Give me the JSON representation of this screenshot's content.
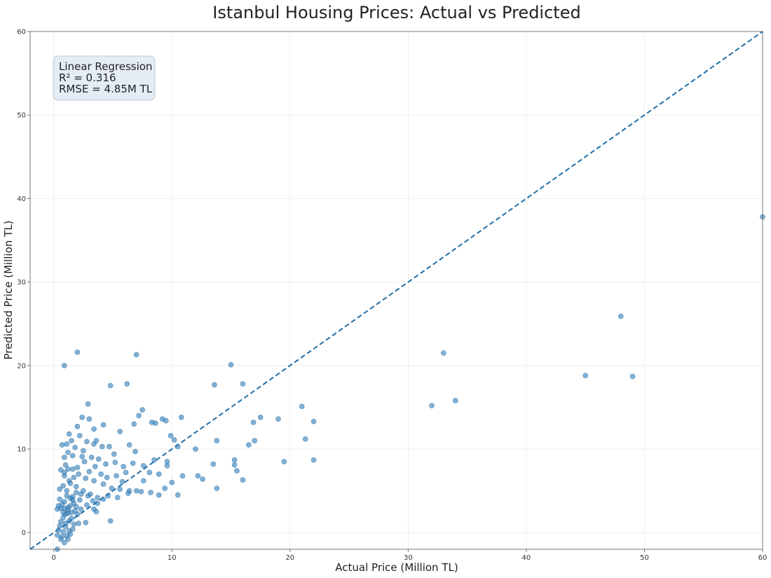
{
  "chart_data": {
    "type": "scatter",
    "title": "Istanbul Housing Prices: Actual vs Predicted",
    "xlabel": "Actual Price (Million TL)",
    "ylabel": "Predicted Price (Million TL)",
    "xlim": [
      -2,
      60
    ],
    "ylim": [
      -2,
      60
    ],
    "xticks": [
      0,
      10,
      20,
      30,
      40,
      50,
      60
    ],
    "yticks": [
      0,
      10,
      20,
      30,
      40,
      50,
      60
    ],
    "grid": true,
    "reference_line": {
      "from": [
        -2,
        -2
      ],
      "to": [
        60,
        60
      ],
      "style": "dashed",
      "color": "#1f6fa8"
    },
    "point_color": "#2b7bb9",
    "annotation": [
      "Linear Regression",
      "R² = 0.316",
      "RMSE = 4.85M TL"
    ],
    "series": [
      {
        "points": [
          [
            0.9,
            20.0
          ],
          [
            2.0,
            21.6
          ],
          [
            4.8,
            17.6
          ],
          [
            6.2,
            17.8
          ],
          [
            7.0,
            21.3
          ],
          [
            15.0,
            20.1
          ],
          [
            13.6,
            17.7
          ],
          [
            16.0,
            17.8
          ],
          [
            2.9,
            15.4
          ],
          [
            4.2,
            12.9
          ],
          [
            7.5,
            14.7
          ],
          [
            9.2,
            13.6
          ],
          [
            10.8,
            13.8
          ],
          [
            17.5,
            13.8
          ],
          [
            19.0,
            13.6
          ],
          [
            21.0,
            15.1
          ],
          [
            22.0,
            13.3
          ],
          [
            16.9,
            13.2
          ],
          [
            17.0,
            11.0
          ],
          [
            16.5,
            10.5
          ],
          [
            13.8,
            11.0
          ],
          [
            12.0,
            10.0
          ],
          [
            10.5,
            10.3
          ],
          [
            9.9,
            11.6
          ],
          [
            10.2,
            11.1
          ],
          [
            8.3,
            13.2
          ],
          [
            8.6,
            13.1
          ],
          [
            9.5,
            13.4
          ],
          [
            7.2,
            14.0
          ],
          [
            6.8,
            13.0
          ],
          [
            5.6,
            12.1
          ],
          [
            6.4,
            10.5
          ],
          [
            6.9,
            9.7
          ],
          [
            5.1,
            9.4
          ],
          [
            4.7,
            10.3
          ],
          [
            4.1,
            10.3
          ],
          [
            3.4,
            12.4
          ],
          [
            3.0,
            13.6
          ],
          [
            2.4,
            13.8
          ],
          [
            2.0,
            12.7
          ],
          [
            1.3,
            11.8
          ],
          [
            1.5,
            11.0
          ],
          [
            1.1,
            10.6
          ],
          [
            0.7,
            10.5
          ],
          [
            1.8,
            10.2
          ],
          [
            2.5,
            9.8
          ],
          [
            3.2,
            9.0
          ],
          [
            3.8,
            8.8
          ],
          [
            4.4,
            8.2
          ],
          [
            5.2,
            8.4
          ],
          [
            5.9,
            7.9
          ],
          [
            6.7,
            8.3
          ],
          [
            7.6,
            8.0
          ],
          [
            8.5,
            8.7
          ],
          [
            9.6,
            8.5
          ],
          [
            9.6,
            8.0
          ],
          [
            8.9,
            7.0
          ],
          [
            8.1,
            7.2
          ],
          [
            7.6,
            6.2
          ],
          [
            7.0,
            5.0
          ],
          [
            6.4,
            5.0
          ],
          [
            5.6,
            5.2
          ],
          [
            4.9,
            5.3
          ],
          [
            4.2,
            5.8
          ],
          [
            3.4,
            6.2
          ],
          [
            2.7,
            6.5
          ],
          [
            2.1,
            7.0
          ],
          [
            1.6,
            7.6
          ],
          [
            1.0,
            8.1
          ],
          [
            0.6,
            7.5
          ],
          [
            0.9,
            6.8
          ],
          [
            1.3,
            6.2
          ],
          [
            1.9,
            5.5
          ],
          [
            2.5,
            5.0
          ],
          [
            3.1,
            4.6
          ],
          [
            3.7,
            4.2
          ],
          [
            4.6,
            4.4
          ],
          [
            5.4,
            4.2
          ],
          [
            6.3,
            4.7
          ],
          [
            7.4,
            4.9
          ],
          [
            8.2,
            4.8
          ],
          [
            8.9,
            4.5
          ],
          [
            9.4,
            5.3
          ],
          [
            10.0,
            6.0
          ],
          [
            10.9,
            6.8
          ],
          [
            12.2,
            6.8
          ],
          [
            12.6,
            6.4
          ],
          [
            13.5,
            8.2
          ],
          [
            15.3,
            8.7
          ],
          [
            15.3,
            8.1
          ],
          [
            15.5,
            7.4
          ],
          [
            16.0,
            6.3
          ],
          [
            13.8,
            5.3
          ],
          [
            19.5,
            8.5
          ],
          [
            22.0,
            8.7
          ],
          [
            21.3,
            11.2
          ],
          [
            10.5,
            4.5
          ],
          [
            4.8,
            1.4
          ],
          [
            4.2,
            4.0
          ],
          [
            3.7,
            3.5
          ],
          [
            3.4,
            2.8
          ],
          [
            2.8,
            3.3
          ],
          [
            2.3,
            2.8
          ],
          [
            2.0,
            2.2
          ],
          [
            2.7,
            1.2
          ],
          [
            2.1,
            1.1
          ],
          [
            3.6,
            2.5
          ],
          [
            3.3,
            3.8
          ],
          [
            2.9,
            4.4
          ],
          [
            2.3,
            4.6
          ],
          [
            1.9,
            4.8
          ],
          [
            1.6,
            3.9
          ],
          [
            1.4,
            3.2
          ],
          [
            1.2,
            2.7
          ],
          [
            1.0,
            2.2
          ],
          [
            0.8,
            1.8
          ],
          [
            0.6,
            1.3
          ],
          [
            0.5,
            0.8
          ],
          [
            0.4,
            0.3
          ],
          [
            0.3,
            -0.3
          ],
          [
            0.6,
            -0.8
          ],
          [
            0.9,
            -1.2
          ],
          [
            1.2,
            -0.8
          ],
          [
            1.4,
            -0.2
          ],
          [
            1.6,
            0.4
          ],
          [
            1.7,
            1.0
          ],
          [
            1.5,
            1.7
          ],
          [
            1.2,
            2.3
          ],
          [
            0.9,
            2.9
          ],
          [
            0.7,
            3.4
          ],
          [
            0.5,
            4.0
          ],
          [
            1.1,
            4.4
          ],
          [
            1.4,
            4.1
          ],
          [
            1.7,
            3.5
          ],
          [
            1.8,
            2.6
          ],
          [
            1.3,
            1.4
          ],
          [
            1.0,
            0.7
          ],
          [
            0.8,
            0.1
          ],
          [
            0.7,
            -0.5
          ],
          [
            1.1,
            -0.4
          ],
          [
            1.3,
            0.2
          ],
          [
            1.0,
            1.1
          ],
          [
            0.8,
            2.4
          ],
          [
            0.6,
            2.9
          ],
          [
            1.2,
            3.0
          ],
          [
            1.5,
            2.4
          ],
          [
            0.4,
            3.2
          ],
          [
            0.3,
            2.8
          ],
          [
            0.9,
            3.7
          ],
          [
            1.6,
            4.3
          ],
          [
            1.9,
            3.1
          ],
          [
            2.2,
            3.9
          ],
          [
            1.1,
            5.0
          ],
          [
            0.8,
            5.6
          ],
          [
            0.5,
            5.2
          ],
          [
            1.4,
            5.9
          ],
          [
            1.7,
            6.6
          ],
          [
            2.0,
            7.8
          ],
          [
            1.2,
            7.6
          ],
          [
            0.9,
            7.2
          ],
          [
            2.6,
            8.5
          ],
          [
            3.0,
            7.3
          ],
          [
            3.5,
            7.9
          ],
          [
            4.0,
            7.0
          ],
          [
            4.5,
            6.6
          ],
          [
            5.3,
            6.8
          ],
          [
            5.8,
            6.1
          ],
          [
            6.1,
            7.2
          ],
          [
            2.8,
            10.9
          ],
          [
            3.4,
            10.6
          ],
          [
            3.6,
            11.0
          ],
          [
            2.2,
            11.6
          ],
          [
            1.6,
            9.2
          ],
          [
            1.2,
            9.6
          ],
          [
            0.9,
            9.0
          ],
          [
            2.4,
            9.1
          ],
          [
            32.0,
            15.2
          ],
          [
            33.0,
            21.5
          ],
          [
            34.0,
            15.8
          ],
          [
            45.0,
            18.8
          ],
          [
            48.0,
            25.9
          ],
          [
            49.0,
            18.7
          ],
          [
            60.0,
            37.8
          ],
          [
            0.3,
            -2.0
          ]
        ]
      }
    ]
  }
}
